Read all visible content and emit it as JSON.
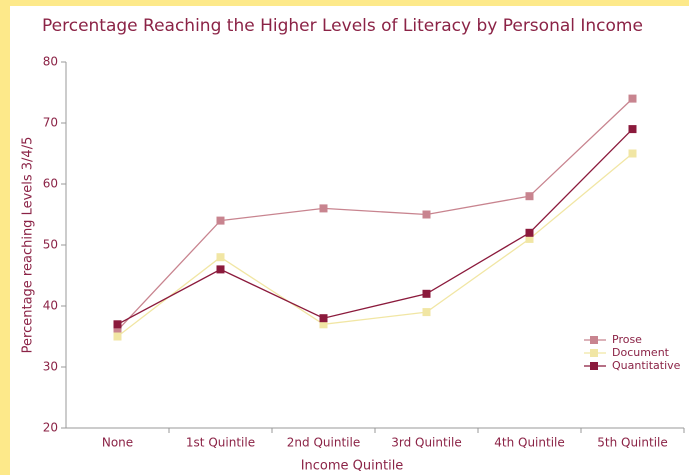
{
  "chart_data": {
    "type": "line",
    "title": "Percentage Reaching the Higher Levels of Literacy by Personal Income",
    "x_label": "Income Quintile",
    "y_label": "Percentage reaching Levels 3/4/5",
    "categories": [
      "None",
      "1st Quintile",
      "2nd Quintile",
      "3rd Quintile",
      "4th Quintile",
      "5th Quintile"
    ],
    "series": [
      {
        "name": "Prose",
        "color": "#c8848f",
        "values": [
          36,
          54,
          56,
          55,
          58,
          74
        ]
      },
      {
        "name": "Document",
        "color": "#f1e6a4",
        "values": [
          35,
          48,
          37,
          39,
          51,
          65
        ]
      },
      {
        "name": "Quantitative",
        "color": "#8b1a3c",
        "values": [
          37,
          46,
          38,
          42,
          52,
          69
        ]
      }
    ],
    "ylim": [
      20,
      80
    ],
    "yticks": [
      20,
      30,
      40,
      50,
      60,
      70,
      80
    ],
    "grid": false,
    "legend": "lower right"
  }
}
